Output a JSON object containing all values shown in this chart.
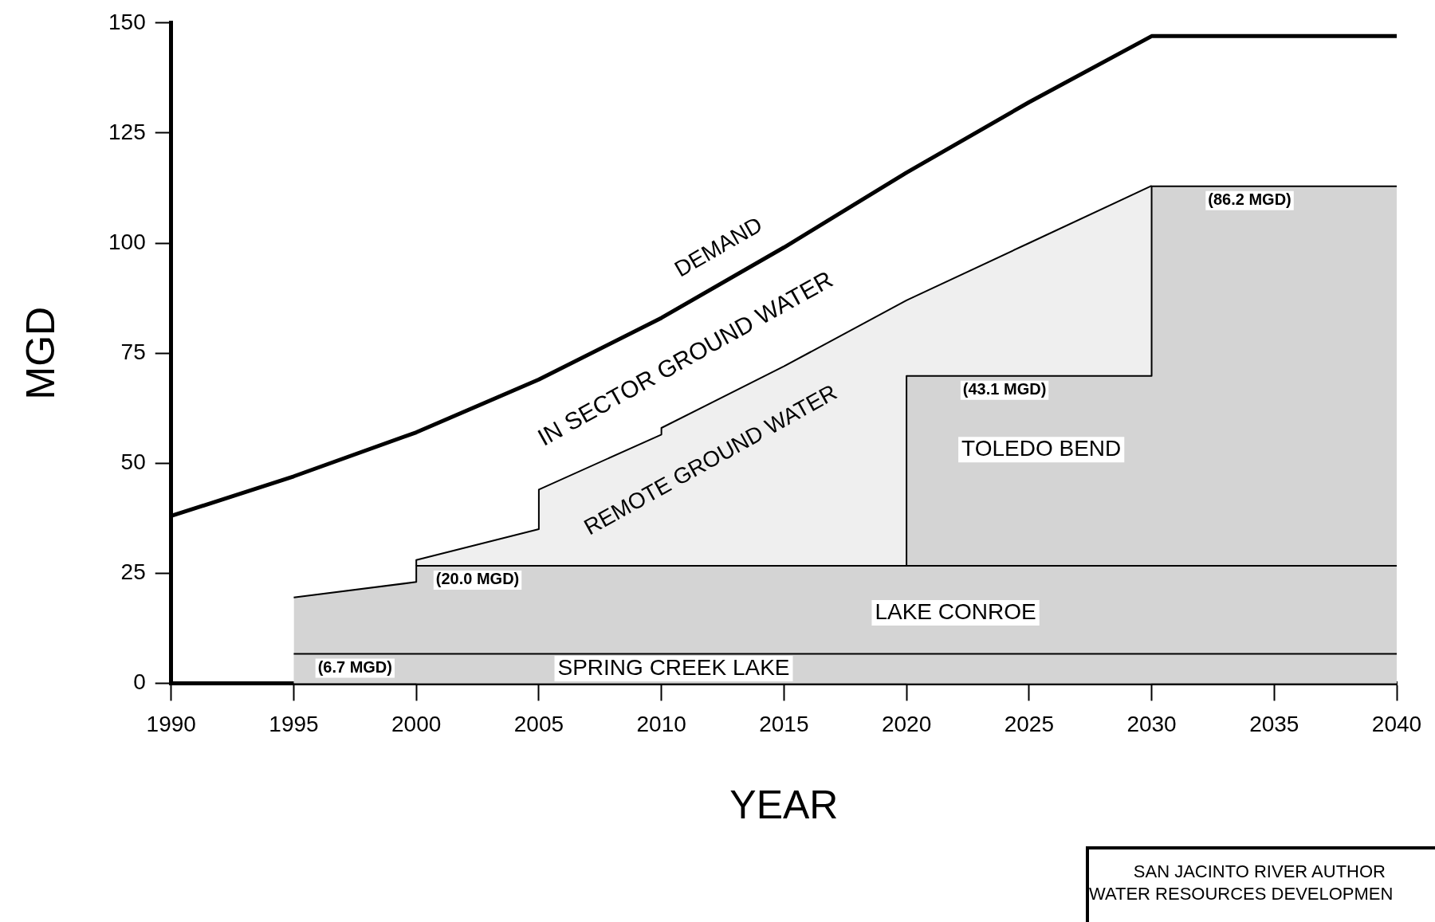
{
  "chart_data": {
    "type": "area",
    "xlabel": "YEAR",
    "ylabel": "MGD",
    "xlim": [
      1990,
      2040
    ],
    "xticks": [
      1990,
      1995,
      2000,
      2005,
      2010,
      2015,
      2020,
      2025,
      2030,
      2035,
      2040
    ],
    "ylim": [
      0,
      150
    ],
    "yticks": [
      0,
      25,
      50,
      75,
      100,
      125,
      150
    ],
    "grid": false,
    "legend": false,
    "series": [
      {
        "name": "SPRING CREEK LAKE",
        "color": "#d4d4d4",
        "x": [
          1995,
          2040
        ],
        "values": [
          6.7,
          6.7
        ]
      },
      {
        "name": "LAKE CONROE",
        "color": "#d4d4d4",
        "x": [
          1995,
          2000,
          2000,
          2040
        ],
        "values": [
          19.5,
          23,
          26.7,
          26.7
        ]
      },
      {
        "name": "TOLEDO BEND",
        "color": "#d4d4d4",
        "x": [
          2020,
          2020,
          2030,
          2030,
          2040
        ],
        "values": [
          26.7,
          69.8,
          69.8,
          112.9,
          112.9
        ]
      },
      {
        "name": "REMOTE GROUND WATER",
        "color": "#efefef",
        "x": [
          2000,
          2000,
          2005,
          2005,
          2010,
          2010,
          2015,
          2020,
          2025,
          2030
        ],
        "values": [
          26.7,
          28,
          35,
          44,
          56.5,
          58,
          72,
          87,
          100,
          113
        ]
      },
      {
        "name": "DEMAND",
        "type": "line",
        "color": "#000000",
        "x": [
          1990,
          1995,
          2000,
          2005,
          2010,
          2015,
          2020,
          2025,
          2030,
          2040
        ],
        "values": [
          38,
          47,
          57,
          69,
          83,
          99,
          116,
          132,
          147,
          147
        ]
      }
    ],
    "annotations": [
      "IN SECTOR GROUND WATER",
      {
        "text": "(6.7 MGD)",
        "x": 1997.5,
        "y": 6.7
      },
      {
        "text": "(20.0 MGD)",
        "x": 2002.5,
        "y": 26.7
      },
      {
        "text": "(43.1 MGD)",
        "x": 2024,
        "y": 69.8
      },
      {
        "text": "(86.2 MGD)",
        "x": 2034,
        "y": 112.9
      },
      "SAN JACINTO RIVER AUTHOR",
      "WATER RESOURCES DEVELOPMEN"
    ]
  }
}
